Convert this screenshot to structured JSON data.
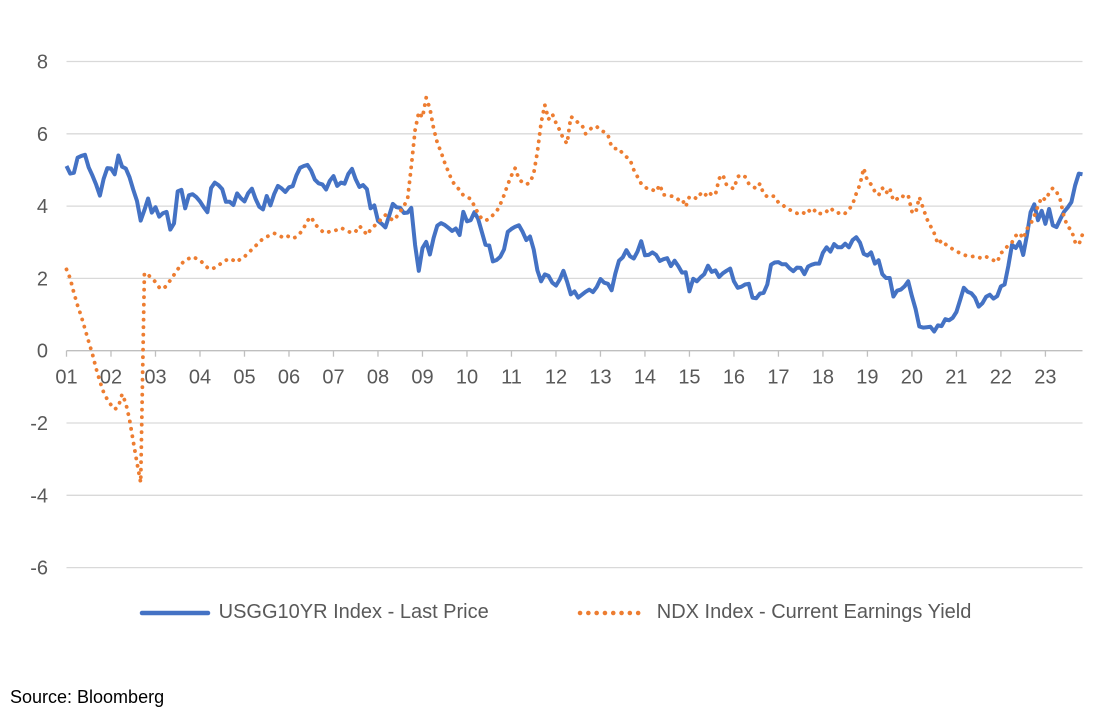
{
  "footer": {
    "source_note": "Source: Bloomberg"
  },
  "chart_data": {
    "type": "line",
    "title": "",
    "xlabel": "",
    "ylabel": "",
    "frequency": "monthly",
    "x_start": "2001-01",
    "x_end": "2023-11",
    "x_tick_labels": [
      "01",
      "02",
      "03",
      "04",
      "05",
      "06",
      "07",
      "08",
      "09",
      "10",
      "11",
      "12",
      "13",
      "14",
      "15",
      "16",
      "17",
      "18",
      "19",
      "20",
      "21",
      "22",
      "23"
    ],
    "y_ticks": [
      8,
      6,
      4,
      2,
      0,
      -2,
      -4,
      -6
    ],
    "ylim": [
      -6,
      8
    ],
    "grid": true,
    "legend_position": "bottom",
    "colors": {
      "gridline": "#D9D9D9",
      "axis_line": "#BFBFBF",
      "tick_label": "#595959",
      "legend_text": "#595959",
      "source_text": "#000000"
    },
    "series": [
      {
        "name": "USGG10YR Index - Last Price",
        "key": "usgg10yr",
        "style": "solid",
        "color": "#4472C4",
        "values": [
          5.11,
          4.9,
          4.92,
          5.34,
          5.39,
          5.42,
          5.07,
          4.84,
          4.59,
          4.29,
          4.75,
          5.05,
          5.04,
          4.88,
          5.4,
          5.09,
          5.04,
          4.8,
          4.46,
          4.14,
          3.6,
          3.89,
          4.21,
          3.82,
          3.97,
          3.71,
          3.8,
          3.84,
          3.35,
          3.52,
          4.41,
          4.45,
          3.94,
          4.3,
          4.33,
          4.25,
          4.13,
          3.97,
          3.83,
          4.5,
          4.65,
          4.58,
          4.47,
          4.12,
          4.12,
          4.03,
          4.35,
          4.22,
          4.13,
          4.36,
          4.48,
          4.2,
          3.98,
          3.91,
          4.28,
          4.02,
          4.33,
          4.56,
          4.49,
          4.39,
          4.52,
          4.55,
          4.85,
          5.06,
          5.11,
          5.14,
          4.98,
          4.73,
          4.63,
          4.6,
          4.46,
          4.7,
          4.83,
          4.56,
          4.65,
          4.62,
          4.89,
          5.03,
          4.74,
          4.53,
          4.58,
          4.47,
          3.94,
          4.02,
          3.59,
          3.51,
          3.41,
          3.73,
          4.06,
          3.97,
          3.95,
          3.81,
          3.82,
          3.95,
          2.92,
          2.21,
          2.84,
          3.01,
          2.66,
          3.12,
          3.46,
          3.53,
          3.48,
          3.4,
          3.31,
          3.38,
          3.2,
          3.84,
          3.58,
          3.61,
          3.83,
          3.65,
          3.29,
          2.93,
          2.91,
          2.47,
          2.51,
          2.6,
          2.8,
          3.29,
          3.37,
          3.43,
          3.47,
          3.29,
          3.06,
          3.16,
          2.8,
          2.22,
          1.92,
          2.11,
          2.07,
          1.88,
          1.8,
          1.97,
          2.21,
          1.91,
          1.56,
          1.64,
          1.47,
          1.55,
          1.63,
          1.69,
          1.62,
          1.76,
          1.98,
          1.88,
          1.85,
          1.67,
          2.13,
          2.49,
          2.58,
          2.78,
          2.61,
          2.55,
          2.74,
          3.03,
          2.64,
          2.65,
          2.72,
          2.65,
          2.48,
          2.53,
          2.56,
          2.34,
          2.49,
          2.34,
          2.16,
          2.17,
          1.64,
          1.99,
          1.92,
          2.03,
          2.12,
          2.35,
          2.18,
          2.22,
          2.04,
          2.14,
          2.21,
          2.27,
          1.92,
          1.74,
          1.77,
          1.83,
          1.85,
          1.47,
          1.45,
          1.58,
          1.6,
          1.83,
          2.38,
          2.44,
          2.45,
          2.39,
          2.39,
          2.28,
          2.2,
          2.3,
          2.29,
          2.12,
          2.33,
          2.38,
          2.41,
          2.41,
          2.71,
          2.86,
          2.74,
          2.95,
          2.86,
          2.86,
          2.96,
          2.86,
          3.06,
          3.14,
          2.99,
          2.68,
          2.63,
          2.72,
          2.41,
          2.5,
          2.12,
          2.01,
          2.01,
          1.5,
          1.66,
          1.69,
          1.78,
          1.92,
          1.51,
          1.15,
          0.67,
          0.64,
          0.65,
          0.66,
          0.53,
          0.7,
          0.68,
          0.87,
          0.84,
          0.91,
          1.07,
          1.4,
          1.74,
          1.63,
          1.59,
          1.47,
          1.22,
          1.31,
          1.49,
          1.55,
          1.44,
          1.51,
          1.78,
          1.83,
          2.34,
          2.93,
          2.84,
          3.01,
          2.65,
          3.19,
          3.83,
          4.05,
          3.61,
          3.87,
          3.51,
          3.92,
          3.47,
          3.42,
          3.64,
          3.84,
          3.96,
          4.11,
          4.57,
          4.9,
          4.88
        ]
      },
      {
        "name": "NDX Index - Current Earnings Yield",
        "key": "ndx-earnings-yield",
        "style": "dotted",
        "color": "#ED7D31",
        "values": [
          2.25,
          2.0,
          1.6,
          1.25,
          0.95,
          0.6,
          0.25,
          -0.1,
          -0.5,
          -0.85,
          -1.15,
          -1.35,
          -1.5,
          -1.62,
          -1.55,
          -1.2,
          -1.45,
          -1.9,
          -2.5,
          -3.1,
          -3.65,
          2.15,
          2.1,
          2.0,
          1.9,
          1.75,
          1.7,
          1.8,
          1.95,
          2.1,
          2.25,
          2.4,
          2.5,
          2.55,
          2.6,
          2.55,
          2.5,
          2.4,
          2.3,
          2.25,
          2.3,
          2.35,
          2.45,
          2.5,
          2.55,
          2.5,
          2.45,
          2.55,
          2.6,
          2.7,
          2.8,
          2.9,
          3.0,
          3.1,
          3.15,
          3.2,
          3.25,
          3.2,
          3.15,
          3.2,
          3.15,
          3.1,
          3.15,
          3.25,
          3.4,
          3.6,
          3.7,
          3.5,
          3.4,
          3.3,
          3.25,
          3.3,
          3.3,
          3.35,
          3.4,
          3.35,
          3.3,
          3.25,
          3.3,
          3.45,
          3.35,
          3.2,
          3.35,
          3.45,
          3.55,
          3.65,
          3.75,
          3.7,
          3.6,
          3.7,
          3.85,
          4.0,
          4.2,
          5.1,
          6.1,
          6.6,
          6.45,
          7.0,
          6.7,
          6.15,
          5.75,
          5.5,
          5.2,
          4.95,
          4.7,
          4.55,
          4.45,
          4.3,
          4.25,
          4.2,
          4.0,
          3.8,
          3.65,
          3.6,
          3.65,
          3.75,
          3.85,
          4.05,
          4.3,
          4.6,
          4.85,
          5.05,
          4.75,
          4.65,
          4.6,
          4.65,
          4.9,
          5.5,
          6.3,
          6.8,
          6.4,
          6.55,
          6.3,
          6.1,
          5.86,
          5.73,
          6.47,
          6.42,
          6.3,
          6.25,
          6.0,
          6.1,
          6.2,
          6.2,
          6.1,
          6.05,
          5.97,
          5.64,
          5.59,
          5.59,
          5.45,
          5.36,
          5.28,
          5.0,
          4.81,
          4.62,
          4.53,
          4.45,
          4.45,
          4.4,
          4.59,
          4.31,
          4.31,
          4.28,
          4.26,
          4.18,
          4.2,
          3.98,
          4.26,
          4.26,
          4.2,
          4.34,
          4.26,
          4.4,
          4.31,
          4.31,
          4.76,
          4.87,
          4.59,
          4.52,
          4.48,
          4.81,
          4.87,
          4.81,
          4.62,
          4.55,
          4.48,
          4.62,
          4.34,
          4.26,
          4.3,
          4.26,
          4.1,
          4.05,
          3.95,
          3.9,
          3.85,
          3.8,
          3.85,
          3.8,
          3.9,
          3.8,
          3.9,
          3.8,
          3.78,
          3.85,
          3.95,
          3.85,
          3.8,
          3.85,
          3.8,
          3.9,
          4.05,
          4.35,
          4.6,
          5.05,
          4.7,
          4.6,
          4.4,
          4.3,
          4.5,
          4.35,
          4.5,
          4.15,
          4.2,
          4.3,
          4.25,
          4.3,
          3.85,
          3.8,
          4.25,
          3.95,
          3.65,
          3.45,
          3.25,
          2.95,
          3.05,
          2.95,
          2.87,
          2.81,
          2.75,
          2.7,
          2.65,
          2.62,
          2.6,
          2.62,
          2.58,
          2.55,
          2.6,
          2.55,
          2.5,
          2.45,
          2.7,
          2.78,
          2.93,
          3.0,
          3.18,
          3.26,
          3.1,
          3.37,
          3.5,
          3.73,
          4.0,
          4.25,
          4.17,
          4.36,
          4.5,
          4.4,
          4.17,
          3.7,
          3.43,
          3.34,
          3.01,
          2.93,
          3.22
        ]
      }
    ]
  }
}
